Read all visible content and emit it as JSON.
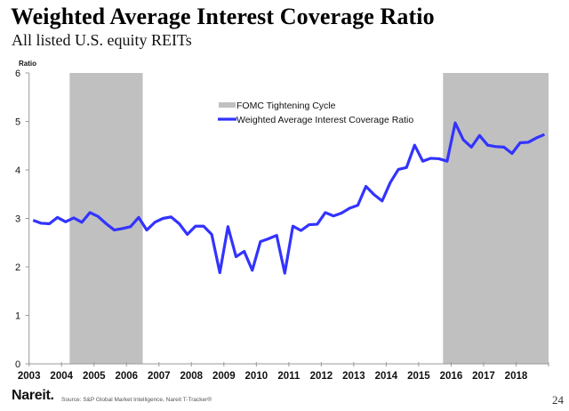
{
  "header": {
    "title": "Weighted Average Interest Coverage Ratio",
    "subtitle": "All listed U.S. equity REITs"
  },
  "chart_data": {
    "type": "line",
    "title": "Weighted Average Interest Coverage Ratio",
    "subtitle": "All listed U.S. equity REITs",
    "xlabel": "",
    "ylabel": "Ratio",
    "xlim": [
      2003,
      2019
    ],
    "ylim": [
      0,
      6
    ],
    "grid": false,
    "frequency": "quarterly",
    "x_ticks": [
      "2003",
      "2004",
      "2005",
      "2006",
      "2007",
      "2008",
      "2009",
      "2010",
      "2011",
      "2012",
      "2013",
      "2014",
      "2015",
      "2016",
      "2017",
      "2018"
    ],
    "y_ticks": [
      "0",
      "1",
      "2",
      "3",
      "4",
      "5",
      "6"
    ],
    "legend": {
      "placement": "top-center",
      "entries": [
        {
          "label": "FOMC Tightening Cycle",
          "kind": "area",
          "color": "#c0c0c0"
        },
        {
          "label": "Weighted Average Interest Coverage Ratio",
          "kind": "line",
          "color": "#3333ff"
        }
      ]
    },
    "shaded_periods": [
      {
        "name": "FOMC Tightening Cycle",
        "start": 2004.25,
        "end": 2006.5,
        "color": "#c0c0c0"
      },
      {
        "name": "FOMC Tightening Cycle",
        "start": 2015.75,
        "end": 2019.0,
        "color": "#c0c0c0"
      }
    ],
    "x": [
      "2003Q1",
      "2003Q2",
      "2003Q3",
      "2003Q4",
      "2004Q1",
      "2004Q2",
      "2004Q3",
      "2004Q4",
      "2005Q1",
      "2005Q2",
      "2005Q3",
      "2005Q4",
      "2006Q1",
      "2006Q2",
      "2006Q3",
      "2006Q4",
      "2007Q1",
      "2007Q2",
      "2007Q3",
      "2007Q4",
      "2008Q1",
      "2008Q2",
      "2008Q3",
      "2008Q4",
      "2009Q1",
      "2009Q2",
      "2009Q3",
      "2009Q4",
      "2010Q1",
      "2010Q2",
      "2010Q3",
      "2010Q4",
      "2011Q1",
      "2011Q2",
      "2011Q3",
      "2011Q4",
      "2012Q1",
      "2012Q2",
      "2012Q3",
      "2012Q4",
      "2013Q1",
      "2013Q2",
      "2013Q3",
      "2013Q4",
      "2014Q1",
      "2014Q2",
      "2014Q3",
      "2014Q4",
      "2015Q1",
      "2015Q2",
      "2015Q3",
      "2015Q4",
      "2016Q1",
      "2016Q2",
      "2016Q3",
      "2016Q4",
      "2017Q1",
      "2017Q2",
      "2017Q3",
      "2017Q4",
      "2018Q1",
      "2018Q2",
      "2018Q3",
      "2018Q4"
    ],
    "series": [
      {
        "name": "Weighted Average Interest Coverage Ratio",
        "color": "#3333ff",
        "values": [
          2.96,
          2.9,
          2.89,
          3.02,
          2.93,
          3.01,
          2.92,
          3.12,
          3.04,
          2.89,
          2.76,
          2.79,
          2.83,
          3.02,
          2.76,
          2.92,
          3.0,
          3.03,
          2.89,
          2.67,
          2.84,
          2.84,
          2.67,
          1.88,
          2.83,
          2.21,
          2.32,
          1.93,
          2.52,
          2.58,
          2.65,
          1.87,
          2.84,
          2.75,
          2.87,
          2.88,
          3.12,
          3.05,
          3.11,
          3.21,
          3.27,
          3.66,
          3.49,
          3.36,
          3.74,
          4.01,
          4.05,
          4.51,
          4.18,
          4.24,
          4.23,
          4.18,
          4.97,
          4.62,
          4.47,
          4.71,
          4.51,
          4.48,
          4.47,
          4.34,
          4.56,
          4.57,
          4.66,
          4.73
        ]
      }
    ]
  },
  "footer": {
    "logo": "Nareit.",
    "source": "Source: S&P Global Market Intelligence, Nareit T-Tracker®",
    "page": "24"
  }
}
